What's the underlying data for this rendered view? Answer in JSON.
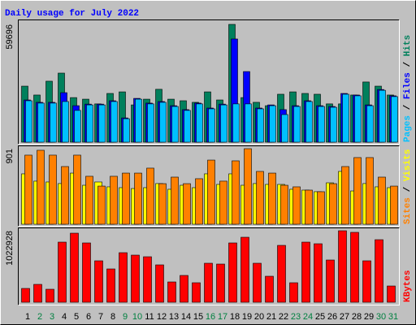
{
  "chart_data": [
    {
      "type": "bar",
      "title": "Daily usage for July 2022",
      "legend_separator": " / ",
      "ylim": [
        0,
        59696
      ],
      "yticks": [
        59696
      ],
      "series": [
        {
          "name": "Hits",
          "color": "#00805c",
          "values": [
            28400,
            23900,
            30900,
            35000,
            22600,
            21800,
            19400,
            24700,
            25500,
            18900,
            21800,
            26800,
            21800,
            21000,
            20200,
            25500,
            21400,
            59696,
            22600,
            20200,
            18500,
            24300,
            25500,
            24700,
            24300,
            19400,
            19400,
            23900,
            30500,
            28400,
            23900
          ]
        },
        {
          "name": "Files",
          "color": "#0000ff",
          "values": [
            21400,
            20200,
            20200,
            25100,
            18500,
            19300,
            19300,
            21000,
            12300,
            22200,
            19800,
            20600,
            18500,
            16500,
            19800,
            17300,
            19300,
            52300,
            35800,
            17300,
            18900,
            16500,
            18500,
            21000,
            18500,
            18100,
            24700,
            23900,
            18900,
            26700,
            23500
          ]
        },
        {
          "name": "Pages",
          "color": "#00c0ff",
          "values": [
            21000,
            19800,
            19800,
            20600,
            16100,
            18900,
            18900,
            20600,
            11900,
            21800,
            19400,
            20200,
            18100,
            16100,
            19400,
            16900,
            18900,
            19400,
            19400,
            16900,
            18500,
            14000,
            18100,
            20600,
            18100,
            17700,
            24300,
            23500,
            18500,
            26300,
            23100
          ]
        }
      ]
    },
    {
      "type": "bar",
      "legend_separator": " / ",
      "ylim": [
        0,
        901
      ],
      "yticks": [
        901
      ],
      "series": [
        {
          "name": "Visits",
          "color": "#ffff00",
          "values": [
            601,
            514,
            504,
            485,
            610,
            465,
            504,
            446,
            436,
            426,
            436,
            485,
            417,
            465,
            436,
            601,
            475,
            601,
            465,
            485,
            475,
            475,
            417,
            407,
            388,
            494,
            630,
            397,
            485,
            446,
            436
          ]
        },
        {
          "name": "Sites",
          "color": "#ff8000",
          "values": [
            824,
            882,
            824,
            688,
            824,
            572,
            455,
            572,
            610,
            610,
            669,
            484,
            562,
            484,
            543,
            765,
            514,
            756,
            901,
            630,
            610,
            465,
            446,
            407,
            388,
            484,
            688,
            795,
            795,
            562,
            455
          ]
        }
      ]
    },
    {
      "type": "bar",
      "ylim": [
        0,
        1022928
      ],
      "yticks": [
        1022928
      ],
      "categories": [
        "1",
        "2",
        "3",
        "4",
        "5",
        "6",
        "7",
        "8",
        "9",
        "10",
        "11",
        "12",
        "13",
        "14",
        "15",
        "16",
        "17",
        "18",
        "19",
        "20",
        "21",
        "22",
        "23",
        "24",
        "25",
        "26",
        "27",
        "28",
        "29",
        "30",
        "31"
      ],
      "category_colors": [
        "#000000",
        "#008040",
        "#008040",
        "#000000",
        "#000000",
        "#000000",
        "#000000",
        "#000000",
        "#008040",
        "#008040",
        "#000000",
        "#000000",
        "#000000",
        "#000000",
        "#000000",
        "#008040",
        "#008040",
        "#000000",
        "#000000",
        "#000000",
        "#000000",
        "#000000",
        "#008040",
        "#008040",
        "#000000",
        "#000000",
        "#000000",
        "#000000",
        "#000000",
        "#008040",
        "#008040"
      ],
      "series": [
        {
          "name": "KBytes",
          "color": "#ff0000",
          "values": [
            197600,
            255700,
            186000,
            860200,
            988000,
            848600,
            592800,
            476600,
            709100,
            674200,
            650900,
            534700,
            290600,
            383600,
            279000,
            558000,
            546300,
            848600,
            929900,
            558000,
            372000,
            813700,
            279000,
            860200,
            836900,
            604400,
            1022928,
            1000000,
            592800,
            895000,
            232500
          ]
        }
      ]
    }
  ]
}
